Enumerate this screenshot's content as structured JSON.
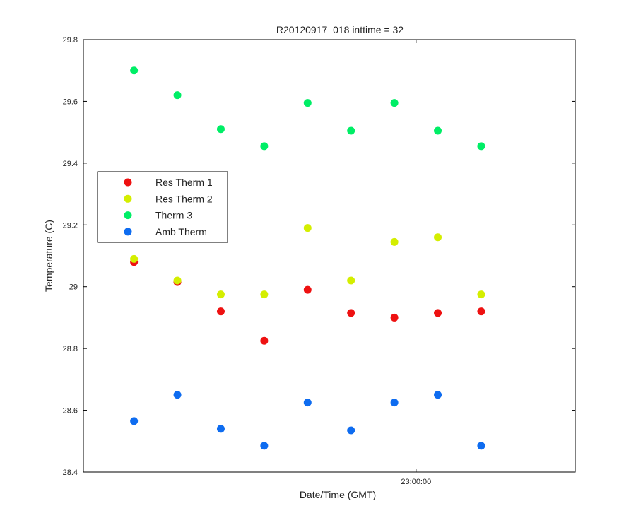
{
  "chart_data": {
    "type": "scatter",
    "title": "R20120917_018 inttime = 32",
    "xlabel": "Date/Time (GMT)",
    "ylabel": "Temperature (C)",
    "ylim": [
      28.4,
      29.8
    ],
    "yticks": [
      28.4,
      28.6,
      28.8,
      29,
      29.2,
      29.4,
      29.6,
      29.8
    ],
    "ytick_labels": [
      "28.4",
      "28.6",
      "28.8",
      "29",
      "29.2",
      "29.4",
      "29.6",
      "29.8"
    ],
    "xlim": [
      "22:52:20",
      "23:03:40"
    ],
    "xticks": [
      "23:00:00"
    ],
    "xtick_labels": [
      "23:00:00"
    ],
    "grid": false,
    "legend_position": "center-left",
    "x": [
      "22:53:30",
      "22:54:30",
      "22:55:30",
      "22:56:30",
      "22:57:30",
      "22:58:30",
      "22:59:30",
      "23:00:30",
      "23:01:30"
    ],
    "series": [
      {
        "name": "Res Therm 1",
        "color": "#ee1111",
        "values": [
          29.08,
          29.015,
          28.92,
          28.825,
          28.99,
          28.915,
          28.9,
          28.915,
          28.92
        ]
      },
      {
        "name": "Res Therm 2",
        "color": "#d4ee00",
        "values": [
          29.09,
          29.02,
          28.975,
          28.975,
          29.19,
          29.02,
          29.145,
          29.16,
          28.975
        ]
      },
      {
        "name": "Therm 3",
        "color": "#00ee66",
        "values": [
          29.7,
          29.62,
          29.51,
          29.455,
          29.595,
          29.505,
          29.595,
          29.505,
          29.455
        ]
      },
      {
        "name": "Amb Therm",
        "color": "#0e6cf0",
        "values": [
          28.565,
          28.65,
          28.54,
          28.485,
          28.625,
          28.535,
          28.625,
          28.65,
          28.485
        ]
      }
    ]
  }
}
